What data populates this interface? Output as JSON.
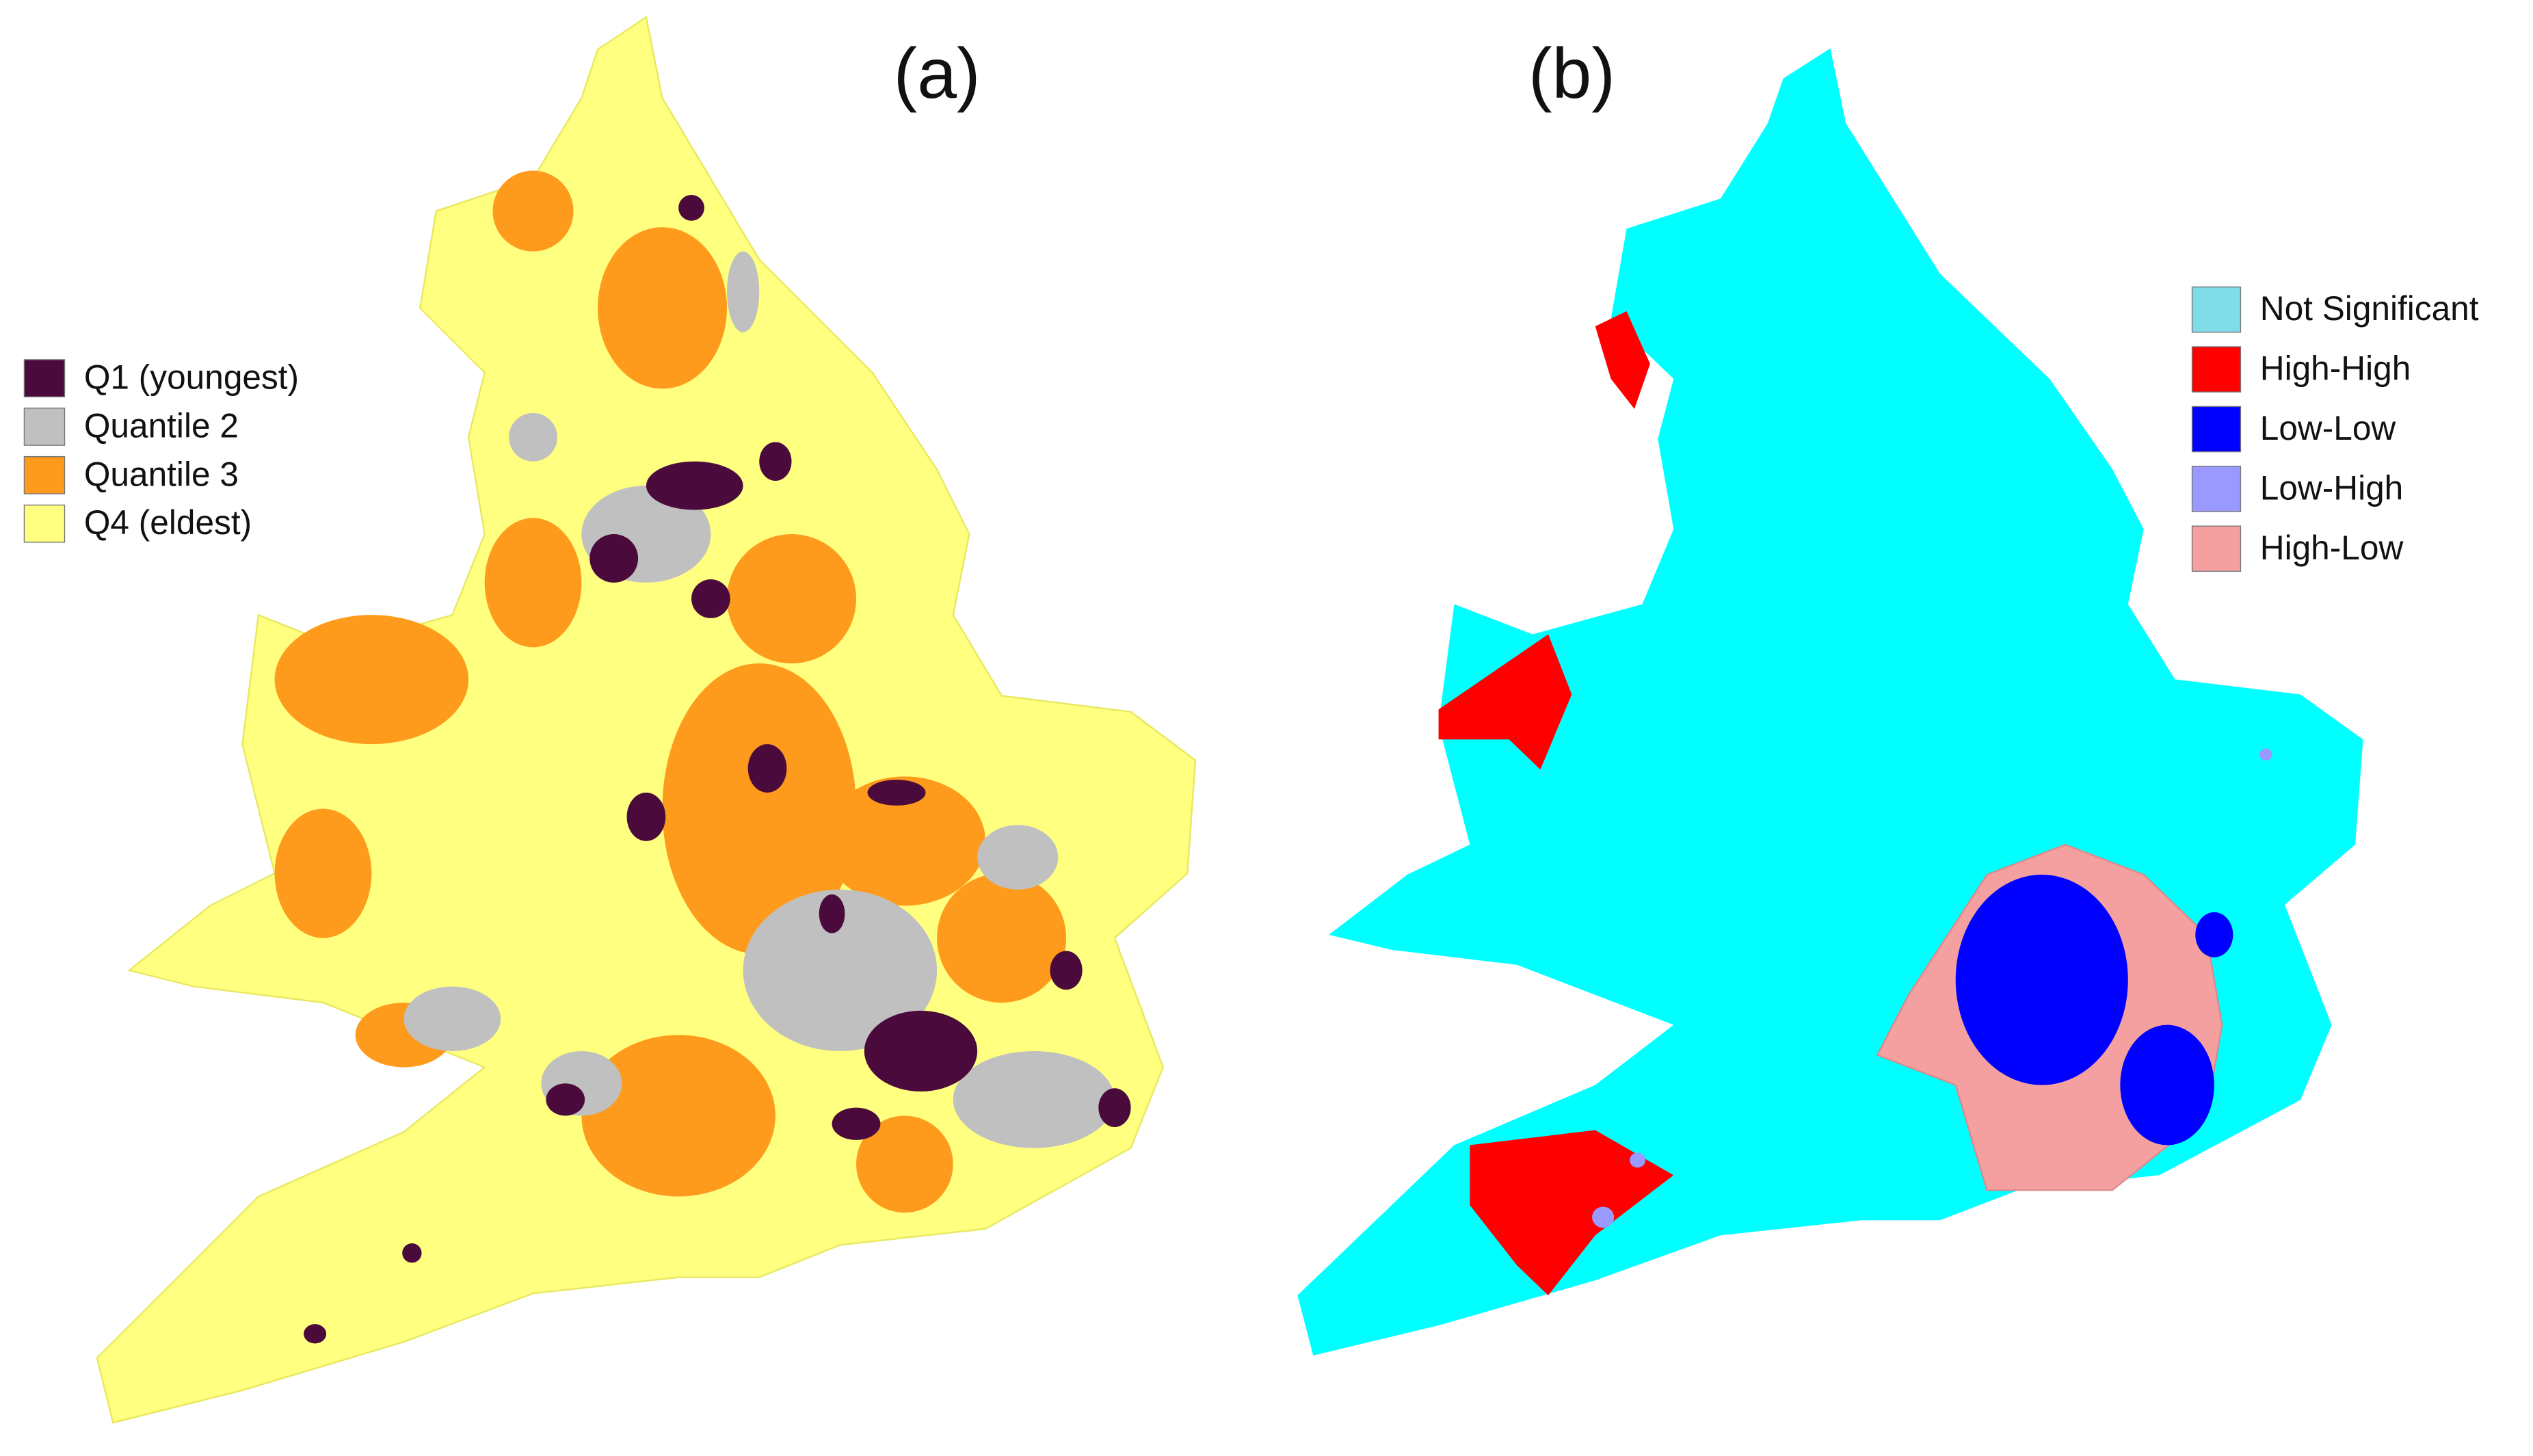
{
  "panels": [
    {
      "label": "(a)",
      "legend": [
        {
          "text": "Q1 (youngest)",
          "color": "#4b0a3c"
        },
        {
          "text": "Quantile 2",
          "color": "#c0c0c0"
        },
        {
          "text": "Quantile 3",
          "color": "#ff9b1c"
        },
        {
          "text": "Q4 (eldest)",
          "color": "#ffff80"
        }
      ]
    },
    {
      "label": "(b)",
      "legend": [
        {
          "text": "Not Significant",
          "color": "#7fdce8"
        },
        {
          "text": "High-High",
          "color": "#ff0000"
        },
        {
          "text": "Low-Low",
          "color": "#0000ff"
        },
        {
          "text": "Low-High",
          "color": "#9999ff"
        },
        {
          "text": "High-Low",
          "color": "#f4a0a0"
        }
      ]
    }
  ]
}
